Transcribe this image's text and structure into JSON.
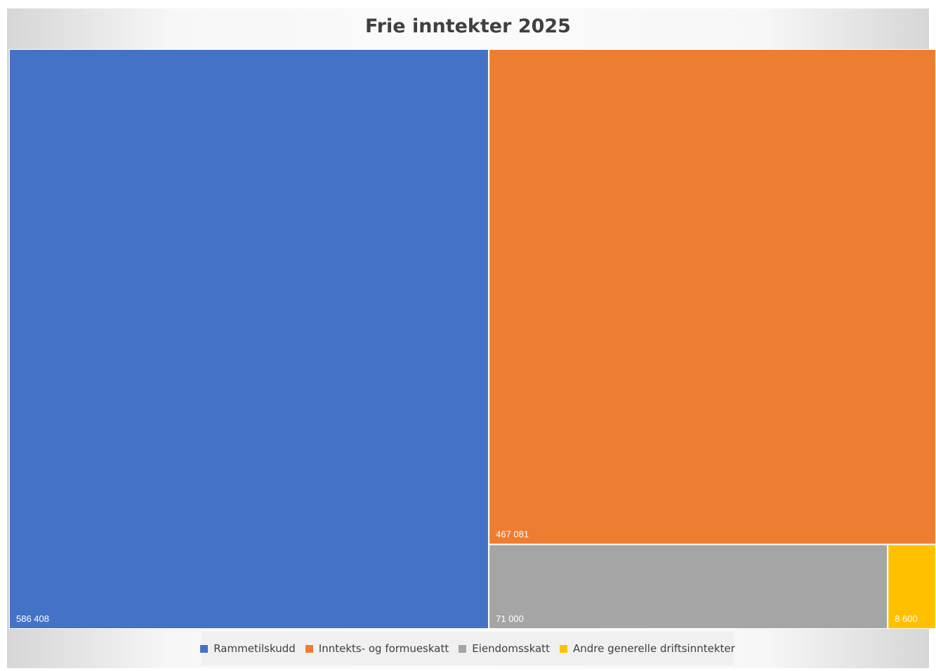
{
  "chart_data": {
    "type": "treemap",
    "title": "Frie inntekter 2025",
    "items": [
      {
        "name": "Rammetilskudd",
        "value": 586408,
        "label": "586 408",
        "color": "#4472C4"
      },
      {
        "name": "Inntekts- og formueskatt",
        "value": 467081,
        "label": "467 081",
        "color": "#ED7D31"
      },
      {
        "name": "Eiendomsskatt",
        "value": 71000,
        "label": "71 000",
        "color": "#A5A5A5"
      },
      {
        "name": "Andre generelle driftsinntekter",
        "value": 8600,
        "label": "8 600",
        "color": "#FFC000"
      }
    ],
    "legend_position": "bottom"
  }
}
